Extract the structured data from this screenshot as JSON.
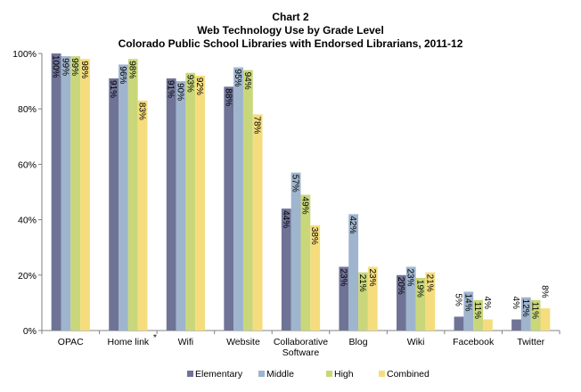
{
  "chart_data": {
    "type": "bar",
    "title_lines": [
      "Chart 2",
      "Web Technology Use by Grade Level",
      "Colorado Public School Libraries with Endorsed Librarians, 2011-12"
    ],
    "categories": [
      "OPAC",
      "Home link",
      "Wifi",
      "Website",
      "Collaborative Software",
      "Blog",
      "Wiki",
      "Facebook",
      "Twitter"
    ],
    "category_label_lines": [
      [
        "OPAC"
      ],
      [
        "Home link"
      ],
      [
        "Wifi"
      ],
      [
        "Website"
      ],
      [
        "Collaborative",
        "Software"
      ],
      [
        "Blog"
      ],
      [
        "Wiki"
      ],
      [
        "Facebook"
      ],
      [
        "Twitter"
      ]
    ],
    "footnote_marker": {
      "category": "Home link",
      "text": "*"
    },
    "series": [
      {
        "name": "Elementary",
        "color": "#6f7396",
        "values": [
          100,
          91,
          91,
          88,
          44,
          23,
          20,
          5,
          4
        ]
      },
      {
        "name": "Middle",
        "color": "#9fb4cd",
        "values": [
          99,
          96,
          90,
          95,
          57,
          42,
          23,
          14,
          12
        ]
      },
      {
        "name": "High",
        "color": "#c9d77a",
        "values": [
          99,
          98,
          93,
          94,
          49,
          21,
          19,
          11,
          11
        ]
      },
      {
        "name": "Combined",
        "color": "#f5dd7d",
        "values": [
          98,
          83,
          92,
          78,
          38,
          23,
          21,
          4,
          8
        ]
      }
    ],
    "yticks": [
      "0%",
      "20%",
      "40%",
      "60%",
      "80%",
      "100%"
    ],
    "ylim": [
      0,
      100
    ],
    "grid": false,
    "legend_position": "bottom"
  }
}
